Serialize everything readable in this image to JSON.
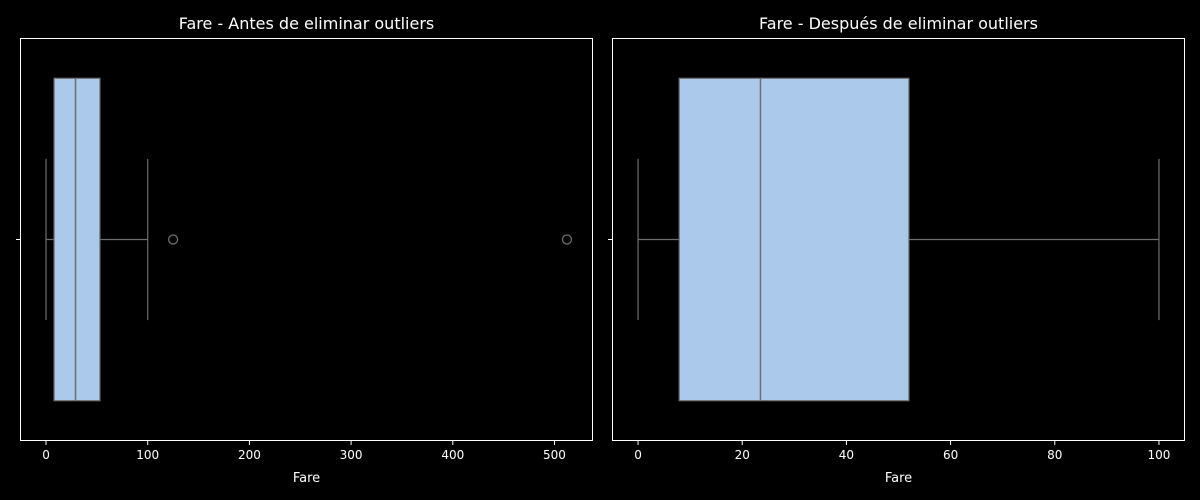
{
  "figure": {
    "background": "#000000",
    "foreground": "#ffffff",
    "box_fill": "#abc9ea",
    "box_edge": "#6e6e6e"
  },
  "chart_data": [
    {
      "type": "boxplot",
      "title": "Fare - Antes de eliminar outliers",
      "xlabel": "Fare",
      "ylabel": "",
      "orientation": "horizontal",
      "xlim": [
        -25.6,
        537.9
      ],
      "xticks": [
        0,
        100,
        200,
        300,
        400,
        500
      ],
      "grid": false,
      "box": {
        "whisker_low": 0,
        "q1": 7.9,
        "median": 29.0,
        "q3": 53.0,
        "whisker_high": 100.0
      },
      "outliers": [
        125.0,
        512.3
      ]
    },
    {
      "type": "boxplot",
      "title": "Fare - Después de eliminar outliers",
      "xlabel": "Fare",
      "ylabel": "",
      "orientation": "horizontal",
      "xlim": [
        -5.0,
        105.0
      ],
      "xticks": [
        0,
        20,
        40,
        60,
        80,
        100
      ],
      "grid": false,
      "box": {
        "whisker_low": 0,
        "q1": 7.9,
        "median": 23.5,
        "q3": 52.0,
        "whisker_high": 100.0
      },
      "outliers": []
    }
  ]
}
